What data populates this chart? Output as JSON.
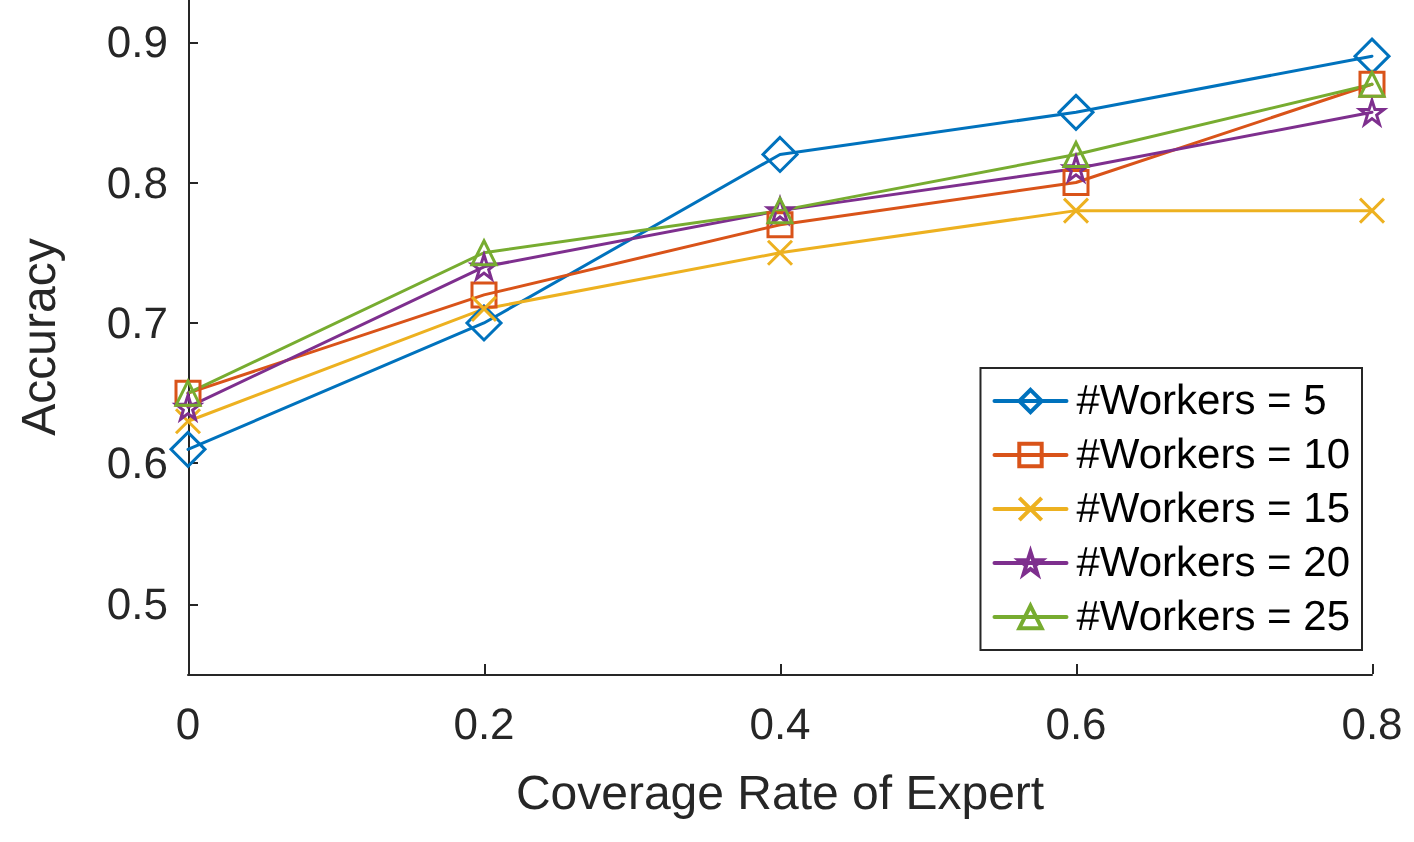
{
  "chart_data": {
    "type": "line",
    "xlabel": "Coverage Rate of Expert",
    "ylabel": "Accuracy",
    "x": [
      0,
      0.2,
      0.4,
      0.6,
      0.8
    ],
    "xlim": [
      0,
      0.8
    ],
    "xticks": [
      0,
      0.2,
      0.4,
      0.6,
      0.8
    ],
    "ylim": [
      0.45,
      0.93
    ],
    "yticks": [
      0.5,
      0.6,
      0.7,
      0.8,
      0.9
    ],
    "grid": false,
    "legend": "bottom right",
    "line_style": "solid",
    "series": [
      {
        "name": "#Workers = 5",
        "color": "#0072bd",
        "marker": "diamond",
        "values": [
          0.61,
          0.7,
          0.82,
          0.85,
          0.89
        ]
      },
      {
        "name": "#Workers = 10",
        "color": "#d95319",
        "marker": "square",
        "values": [
          0.65,
          0.72,
          0.77,
          0.8,
          0.87
        ]
      },
      {
        "name": "#Workers = 15",
        "color": "#edb120",
        "marker": "cross",
        "values": [
          0.63,
          0.71,
          0.75,
          0.78,
          0.78
        ]
      },
      {
        "name": "#Workers = 20",
        "color": "#7e2f8e",
        "marker": "star",
        "values": [
          0.64,
          0.74,
          0.78,
          0.81,
          0.85
        ]
      },
      {
        "name": "#Workers = 25",
        "color": "#77ac30",
        "marker": "triangle",
        "values": [
          0.65,
          0.75,
          0.78,
          0.82,
          0.87
        ]
      }
    ]
  }
}
